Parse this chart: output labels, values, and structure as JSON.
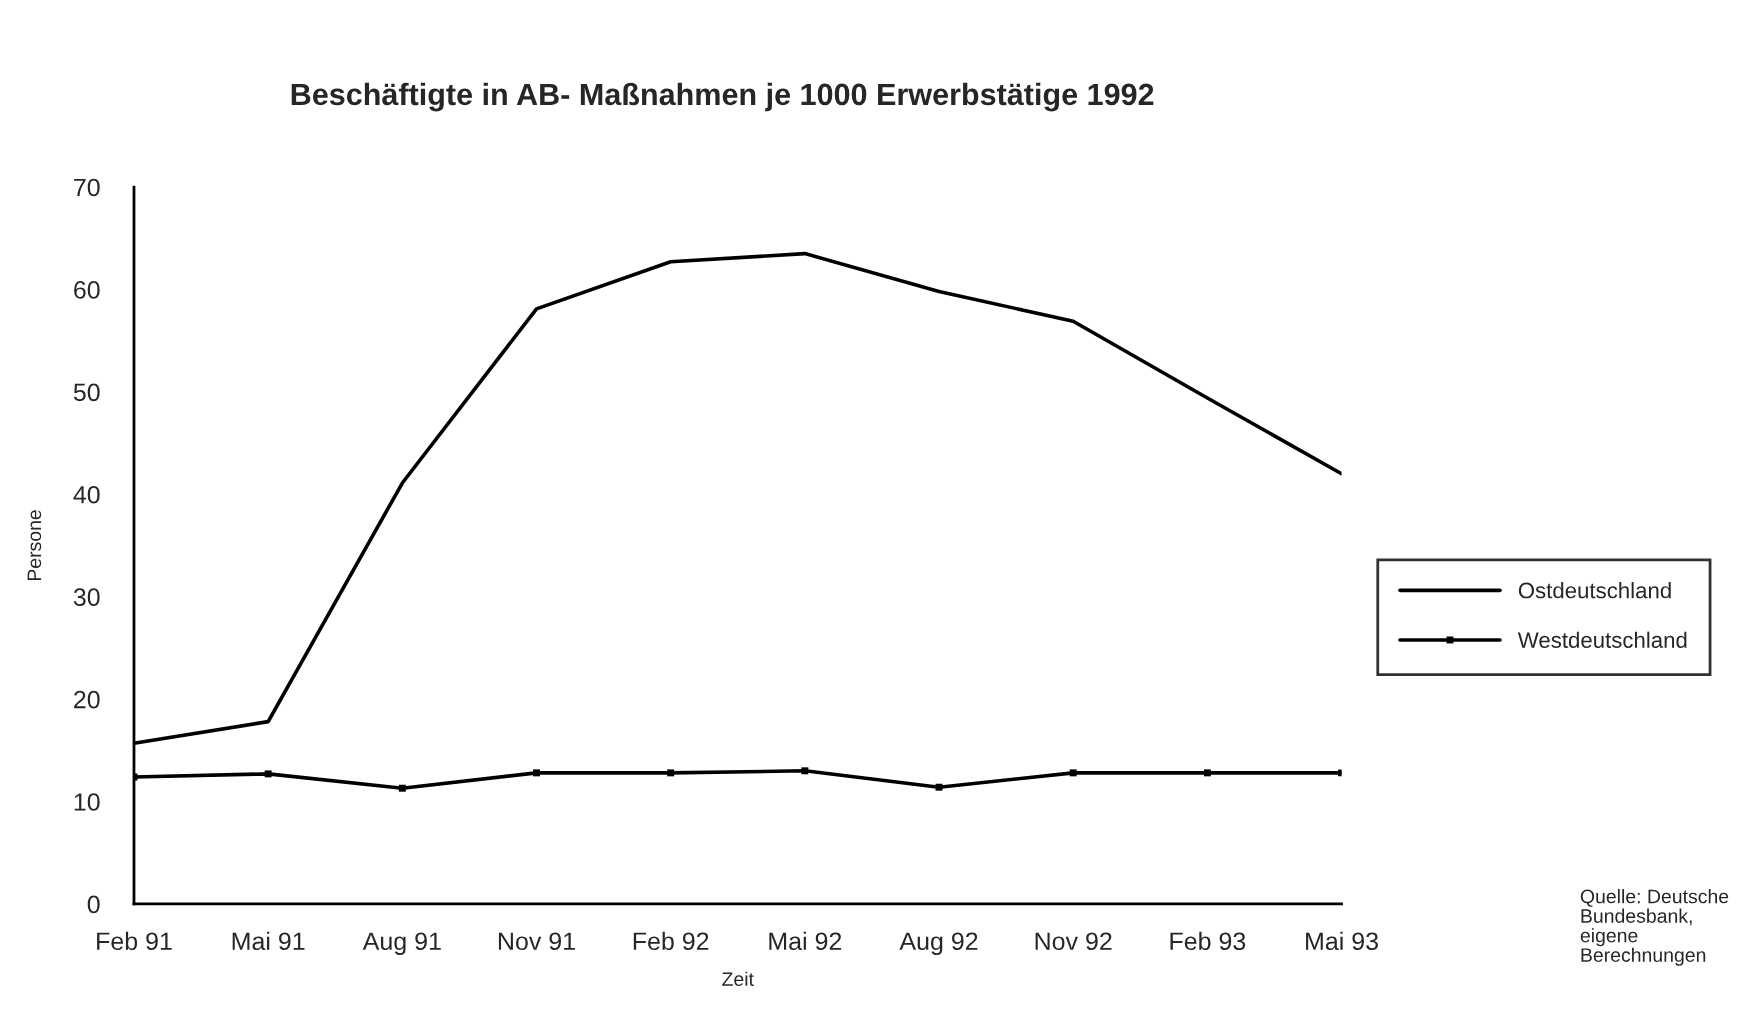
{
  "chart_data": {
    "type": "line",
    "title": "Beschäftigte in AB- Maßnahmen je 1000 Erwerbstätige 1992",
    "xlabel": "Zeit",
    "ylabel": "Persone",
    "categories": [
      "Feb 91",
      "Mai 91",
      "Aug 91",
      "Nov 91",
      "Feb 92",
      "Mai 92",
      "Aug 92",
      "Nov 92",
      "Feb 93",
      "Mai 93"
    ],
    "series": [
      {
        "name": "Ostdeutschland",
        "color": "#000000",
        "marker": "none",
        "values": [
          15.7,
          17.8,
          41.1,
          58.1,
          62.7,
          63.5,
          59.8,
          56.9,
          49.4,
          42.0
        ]
      },
      {
        "name": "Westdeutschland",
        "color": "#000000",
        "marker": "square",
        "values": [
          12.4,
          12.7,
          11.3,
          12.8,
          12.8,
          13.0,
          11.4,
          12.8,
          12.8,
          12.8
        ]
      }
    ],
    "ylim": [
      0,
      70
    ],
    "yticks": [
      0,
      10,
      20,
      30,
      40,
      50,
      60,
      70
    ],
    "grid": false,
    "legend": "right",
    "line_style": "solid",
    "annotations": [
      "Quelle: Deutsche\nBundesbank,\neigene\nBerechnungen"
    ]
  }
}
